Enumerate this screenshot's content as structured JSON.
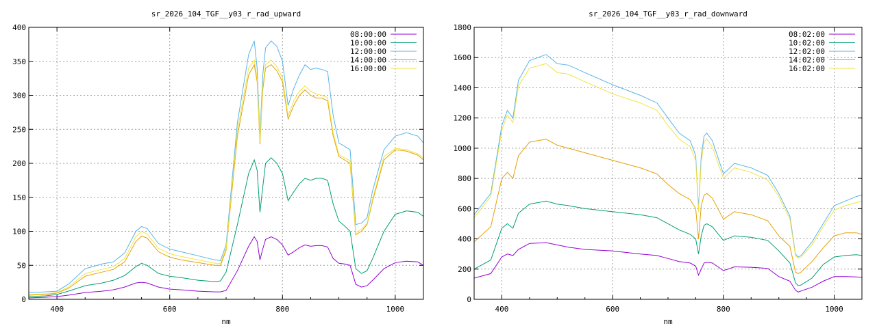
{
  "chart_data": [
    {
      "type": "line",
      "title": "sr_2026_104_TGF__y03_r_rad_upward",
      "xlabel": "nm",
      "ylabel": "",
      "xlim": [
        350,
        1050
      ],
      "ylim": [
        0,
        400
      ],
      "xticks": [
        400,
        600,
        800,
        1000
      ],
      "yticks": [
        0,
        50,
        100,
        150,
        200,
        250,
        300,
        350,
        400
      ],
      "grid": true,
      "legend_position": "top-right",
      "x": [
        350,
        380,
        400,
        420,
        450,
        480,
        500,
        520,
        540,
        550,
        560,
        580,
        600,
        620,
        650,
        680,
        690,
        700,
        720,
        740,
        750,
        755,
        760,
        765,
        770,
        780,
        790,
        800,
        810,
        820,
        830,
        840,
        850,
        860,
        870,
        880,
        890,
        900,
        910,
        920,
        930,
        940,
        950,
        960,
        980,
        1000,
        1020,
        1040,
        1050
      ],
      "series": [
        {
          "name": "08:00:00",
          "color": "#9400d3",
          "values": [
            2,
            3,
            4,
            6,
            10,
            12,
            14,
            18,
            24,
            25,
            24,
            18,
            15,
            14,
            12,
            11,
            11,
            13,
            42,
            78,
            92,
            85,
            58,
            74,
            88,
            92,
            88,
            80,
            65,
            70,
            76,
            80,
            78,
            79,
            79,
            77,
            60,
            53,
            52,
            50,
            22,
            18,
            20,
            28,
            45,
            54,
            56,
            55,
            50
          ]
        },
        {
          "name": "10:00:00",
          "color": "#009e73",
          "values": [
            4,
            5,
            7,
            12,
            20,
            24,
            28,
            35,
            48,
            53,
            50,
            38,
            34,
            32,
            28,
            26,
            27,
            40,
            110,
            185,
            205,
            190,
            128,
            165,
            200,
            208,
            200,
            185,
            145,
            158,
            170,
            178,
            175,
            178,
            178,
            175,
            140,
            115,
            108,
            100,
            45,
            38,
            42,
            60,
            100,
            125,
            130,
            128,
            122
          ]
        },
        {
          "name": "12:00:00",
          "color": "#56b4e9",
          "values": [
            10,
            11,
            12,
            22,
            45,
            52,
            55,
            68,
            100,
            107,
            104,
            82,
            74,
            70,
            64,
            58,
            57,
            80,
            260,
            360,
            380,
            340,
            240,
            330,
            370,
            380,
            372,
            350,
            285,
            310,
            330,
            345,
            338,
            340,
            338,
            335,
            270,
            230,
            225,
            220,
            110,
            112,
            120,
            160,
            220,
            240,
            245,
            240,
            230
          ]
        },
        {
          "name": "14:00:00",
          "color": "#e69f00",
          "values": [
            6,
            7,
            9,
            16,
            34,
            40,
            44,
            55,
            85,
            93,
            90,
            70,
            62,
            58,
            54,
            50,
            50,
            72,
            240,
            330,
            345,
            320,
            228,
            308,
            340,
            345,
            336,
            320,
            265,
            285,
            300,
            308,
            300,
            296,
            296,
            292,
            240,
            210,
            205,
            200,
            95,
            100,
            110,
            145,
            205,
            220,
            218,
            212,
            205
          ]
        },
        {
          "name": "16:00:00",
          "color": "#f0e442",
          "values": [
            7,
            8,
            10,
            18,
            38,
            44,
            48,
            60,
            92,
            100,
            96,
            75,
            67,
            63,
            58,
            53,
            53,
            75,
            248,
            340,
            352,
            325,
            232,
            315,
            345,
            352,
            342,
            326,
            270,
            292,
            306,
            314,
            306,
            302,
            300,
            297,
            245,
            213,
            208,
            204,
            98,
            103,
            112,
            148,
            210,
            222,
            220,
            214,
            208
          ]
        }
      ]
    },
    {
      "type": "line",
      "title": "sr_2026_104_TGF__y03_r_rad_downward",
      "xlabel": "nm",
      "ylabel": "",
      "xlim": [
        350,
        1050
      ],
      "ylim": [
        0,
        1800
      ],
      "xticks": [
        400,
        600,
        800,
        1000
      ],
      "yticks": [
        0,
        200,
        400,
        600,
        800,
        1000,
        1200,
        1400,
        1600,
        1800
      ],
      "grid": true,
      "legend_position": "top-right",
      "x": [
        350,
        380,
        400,
        410,
        420,
        430,
        450,
        480,
        500,
        520,
        550,
        600,
        650,
        680,
        700,
        720,
        740,
        750,
        755,
        760,
        765,
        770,
        780,
        800,
        820,
        850,
        880,
        900,
        920,
        930,
        935,
        940,
        960,
        980,
        1000,
        1020,
        1040,
        1050
      ],
      "series": [
        {
          "name": "08:02:00",
          "color": "#9400d3",
          "values": [
            140,
            170,
            280,
            300,
            290,
            330,
            370,
            375,
            360,
            345,
            330,
            320,
            300,
            290,
            270,
            250,
            240,
            220,
            160,
            200,
            240,
            245,
            240,
            190,
            215,
            212,
            205,
            150,
            120,
            60,
            48,
            55,
            80,
            120,
            150,
            150,
            148,
            145
          ]
        },
        {
          "name": "10:02:00",
          "color": "#009e73",
          "values": [
            200,
            260,
            470,
            500,
            470,
            570,
            630,
            650,
            630,
            620,
            600,
            580,
            560,
            540,
            500,
            460,
            430,
            400,
            300,
            420,
            490,
            500,
            480,
            390,
            420,
            410,
            390,
            320,
            240,
            110,
            90,
            95,
            140,
            230,
            280,
            290,
            295,
            290
          ]
        },
        {
          "name": "12:02:00",
          "color": "#56b4e9",
          "values": [
            560,
            700,
            1150,
            1250,
            1200,
            1450,
            1580,
            1620,
            1560,
            1550,
            1500,
            1420,
            1350,
            1300,
            1200,
            1100,
            1050,
            950,
            600,
            950,
            1080,
            1100,
            1050,
            830,
            900,
            870,
            820,
            700,
            550,
            300,
            280,
            290,
            380,
            500,
            620,
            650,
            680,
            690
          ]
        },
        {
          "name": "14:02:00",
          "color": "#e69f00",
          "values": [
            380,
            480,
            800,
            840,
            800,
            950,
            1040,
            1060,
            1020,
            1000,
            970,
            920,
            870,
            830,
            760,
            700,
            660,
            600,
            400,
            620,
            690,
            700,
            670,
            530,
            580,
            560,
            520,
            420,
            350,
            180,
            170,
            180,
            250,
            340,
            420,
            440,
            440,
            430
          ]
        },
        {
          "name": "16:02:00",
          "color": "#f0e442",
          "values": [
            540,
            680,
            1120,
            1220,
            1170,
            1410,
            1530,
            1560,
            1500,
            1490,
            1440,
            1360,
            1300,
            1250,
            1150,
            1060,
            1010,
            920,
            580,
            910,
            1040,
            1060,
            1010,
            800,
            870,
            840,
            790,
            680,
            530,
            290,
            270,
            280,
            360,
            480,
            590,
            620,
            640,
            650
          ]
        }
      ]
    }
  ]
}
